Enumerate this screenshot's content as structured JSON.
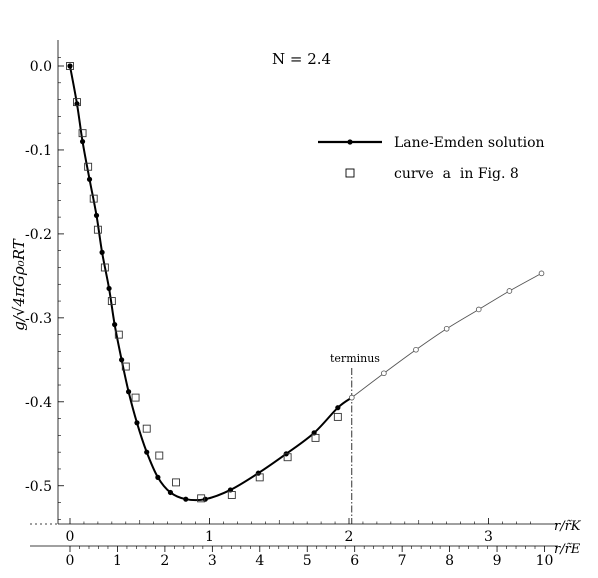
{
  "chart_data": {
    "type": "line",
    "title": "N = 2.4",
    "ylabel": "g/√4πGρ₀RT",
    "xlabel_top": "r/r̃K",
    "xlabel_bottom": "r/r̃E",
    "x_range": [
      -0.1,
      3.4
    ],
    "y_range": [
      -0.55,
      0.02
    ],
    "x_ticks_top": [
      0,
      1,
      2,
      3
    ],
    "x_ticks_bottom": [
      0,
      1,
      2,
      3,
      4,
      5,
      6,
      7,
      8,
      9,
      10
    ],
    "bottom_axis_scale": 2.94,
    "y_ticks": [
      0.0,
      -0.1,
      -0.2,
      -0.3,
      -0.4,
      -0.5
    ],
    "y_tick_labels": [
      "0.0",
      "-0.1",
      "-0.2",
      "-0.3",
      "-0.4",
      "-0.5"
    ],
    "legend": {
      "placement": "top-right",
      "entries": [
        "Lane-Emden solution",
        "curve  a  in Fig. 8"
      ]
    },
    "annotation": {
      "label": "terminus",
      "x": 2.02
    },
    "series": [
      {
        "name": "Lane-Emden solution",
        "style": "thick-line-filled-dots",
        "x": [
          0.0,
          0.05,
          0.09,
          0.14,
          0.19,
          0.23,
          0.28,
          0.32,
          0.37,
          0.42,
          0.48,
          0.55,
          0.63,
          0.72,
          0.83,
          0.97,
          1.15,
          1.35,
          1.55,
          1.75,
          1.92,
          2.02
        ],
        "y": [
          0.0,
          -0.045,
          -0.09,
          -0.135,
          -0.178,
          -0.222,
          -0.265,
          -0.308,
          -0.35,
          -0.388,
          -0.425,
          -0.46,
          -0.49,
          -0.508,
          -0.516,
          -0.516,
          -0.505,
          -0.485,
          -0.462,
          -0.437,
          -0.407,
          -0.395
        ]
      },
      {
        "name": "curve  a  in Fig. 8",
        "style": "open-squares",
        "x": [
          0.0,
          0.05,
          0.09,
          0.13,
          0.17,
          0.2,
          0.25,
          0.3,
          0.35,
          0.4,
          0.47,
          0.55,
          0.64,
          0.76,
          0.94,
          1.16,
          1.36,
          1.56,
          1.76,
          1.92
        ],
        "y": [
          0.0,
          -0.043,
          -0.08,
          -0.12,
          -0.158,
          -0.195,
          -0.24,
          -0.28,
          -0.32,
          -0.358,
          -0.395,
          -0.432,
          -0.464,
          -0.496,
          -0.515,
          -0.511,
          -0.49,
          -0.466,
          -0.443,
          -0.418
        ]
      },
      {
        "name": "continuation",
        "style": "thin-line-open-dots",
        "x": [
          2.02,
          2.25,
          2.48,
          2.7,
          2.93,
          3.15,
          3.38
        ],
        "y": [
          -0.395,
          -0.366,
          -0.338,
          -0.313,
          -0.29,
          -0.268,
          -0.247
        ]
      }
    ]
  }
}
